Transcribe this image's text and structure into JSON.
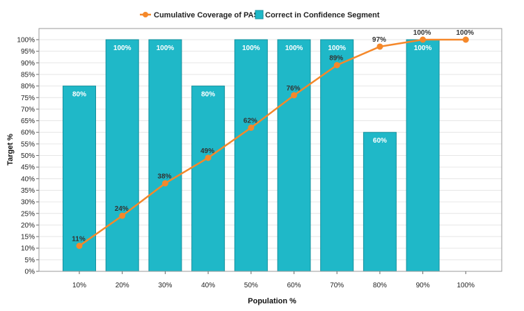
{
  "chart_data": {
    "type": "bar",
    "categories": [
      "10%",
      "20%",
      "30%",
      "40%",
      "50%",
      "60%",
      "70%",
      "80%",
      "90%",
      "100%"
    ],
    "series": [
      {
        "name": "Correct in Confidence Segment",
        "kind": "bar",
        "color": "#1fb8c8",
        "values": [
          80,
          100,
          100,
          80,
          100,
          100,
          100,
          60,
          100,
          null
        ],
        "labels": [
          "80%",
          "100%",
          "100%",
          "80%",
          "100%",
          "100%",
          "100%",
          "60%",
          "100%",
          ""
        ]
      },
      {
        "name": "Cumulative Coverage of PASS",
        "kind": "line",
        "color": "#f5882a",
        "values": [
          11,
          24,
          38,
          49,
          62,
          76,
          89,
          97,
          100,
          100
        ],
        "labels": [
          "11%",
          "24%",
          "38%",
          "49%",
          "62%",
          "76%",
          "89%",
          "97%",
          "100%",
          "100%"
        ]
      }
    ],
    "xlabel": "Population %",
    "ylabel": "Target %",
    "ylim": [
      0,
      100
    ],
    "yticks": [
      "0%",
      "5%",
      "10%",
      "15%",
      "20%",
      "25%",
      "30%",
      "35%",
      "40%",
      "45%",
      "50%",
      "55%",
      "60%",
      "65%",
      "70%",
      "75%",
      "80%",
      "85%",
      "90%",
      "95%",
      "100%"
    ],
    "legend": "top-center",
    "grid": true
  }
}
